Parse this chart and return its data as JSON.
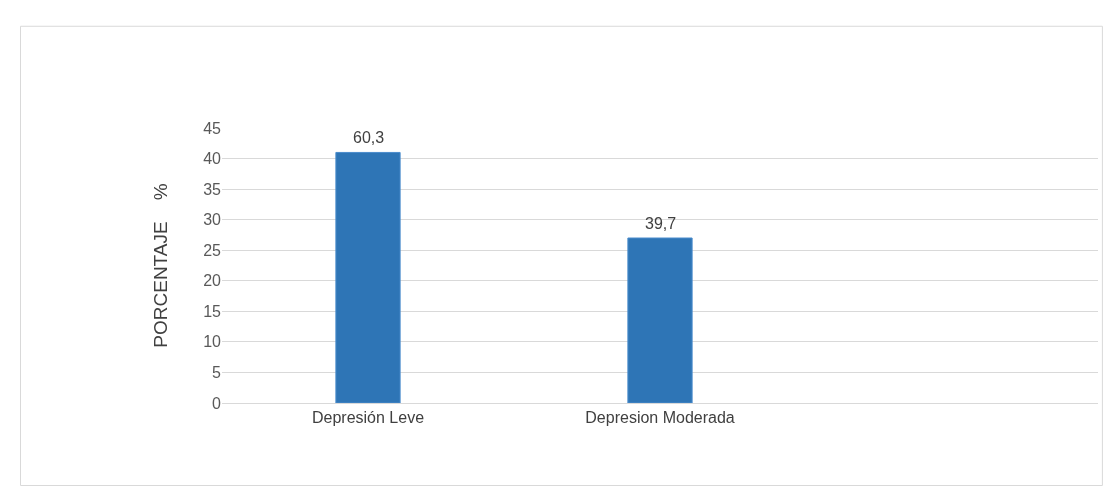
{
  "chart_data": {
    "type": "bar",
    "ylabel": "PORCENTAJE    %",
    "categories": [
      "Depresión Leve",
      "Depresion Moderada",
      null
    ],
    "values": [
      41,
      27,
      null
    ],
    "color": "#2e75b6",
    "annotations": [
      {
        "text": "60,3",
        "x": "Depresión Leve",
        "y": 41
      },
      {
        "text": "39,7",
        "x": "Depresion Moderada",
        "y": 27
      }
    ],
    "ylim": [
      0,
      45
    ],
    "yticks": [
      0,
      5,
      10,
      15,
      20,
      25,
      30,
      35,
      40,
      45
    ],
    "grid": "y",
    "legend": false
  }
}
